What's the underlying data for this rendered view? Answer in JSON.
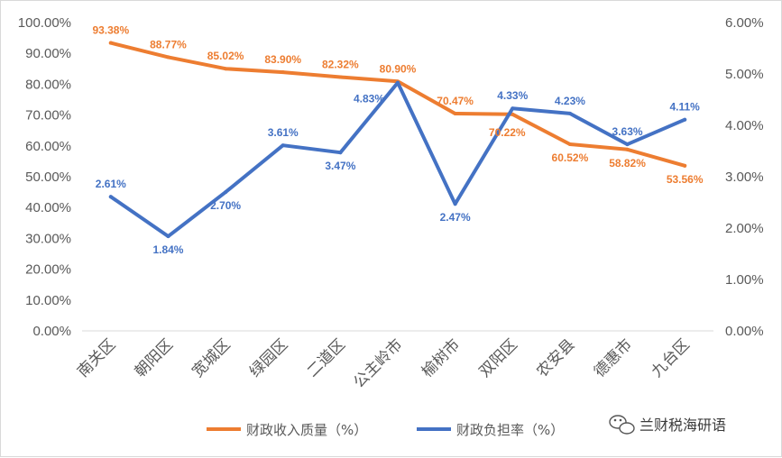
{
  "chart_data": {
    "type": "line",
    "categories": [
      "南关区",
      "朝阳区",
      "宽城区",
      "绿园区",
      "二道区",
      "公主岭市",
      "榆树市",
      "双阳区",
      "农安县",
      "德惠市",
      "九台区"
    ],
    "series": [
      {
        "name": "财政收入质量（%）",
        "axis": "left",
        "color": "#ED7D31",
        "values": [
          93.38,
          88.77,
          85.02,
          83.9,
          82.32,
          80.9,
          70.47,
          70.22,
          60.52,
          58.82,
          53.56
        ],
        "labels": [
          "93.38%",
          "88.77%",
          "85.02%",
          "83.90%",
          "82.32%",
          "80.90%",
          "70.47%",
          "70.22%",
          "60.52%",
          "58.82%",
          "53.56%"
        ]
      },
      {
        "name": "财政负担率（%）",
        "axis": "right",
        "color": "#4472C4",
        "values": [
          2.61,
          1.84,
          2.7,
          3.61,
          3.47,
          4.83,
          2.47,
          4.33,
          4.23,
          3.63,
          4.11
        ],
        "labels": [
          "2.61%",
          "1.84%",
          "2.70%",
          "3.61%",
          "3.47%",
          "4.83%",
          "2.47%",
          "4.33%",
          "4.23%",
          "3.63%",
          "4.11%"
        ]
      }
    ],
    "y_left": {
      "min": 0,
      "max": 100,
      "ticks": [
        "0.00%",
        "10.00%",
        "20.00%",
        "30.00%",
        "40.00%",
        "50.00%",
        "60.00%",
        "70.00%",
        "80.00%",
        "90.00%",
        "100.00%"
      ]
    },
    "y_right": {
      "min": 0,
      "max": 6,
      "ticks": [
        "0.00%",
        "1.00%",
        "2.00%",
        "3.00%",
        "4.00%",
        "5.00%",
        "6.00%"
      ]
    },
    "grid": false,
    "legend": "bottom"
  },
  "legend": {
    "items": [
      "财政收入质量（%）",
      "财政负担率（%）"
    ]
  },
  "watermark": {
    "text": "兰财税海研语",
    "icon": "wechat-icon"
  }
}
